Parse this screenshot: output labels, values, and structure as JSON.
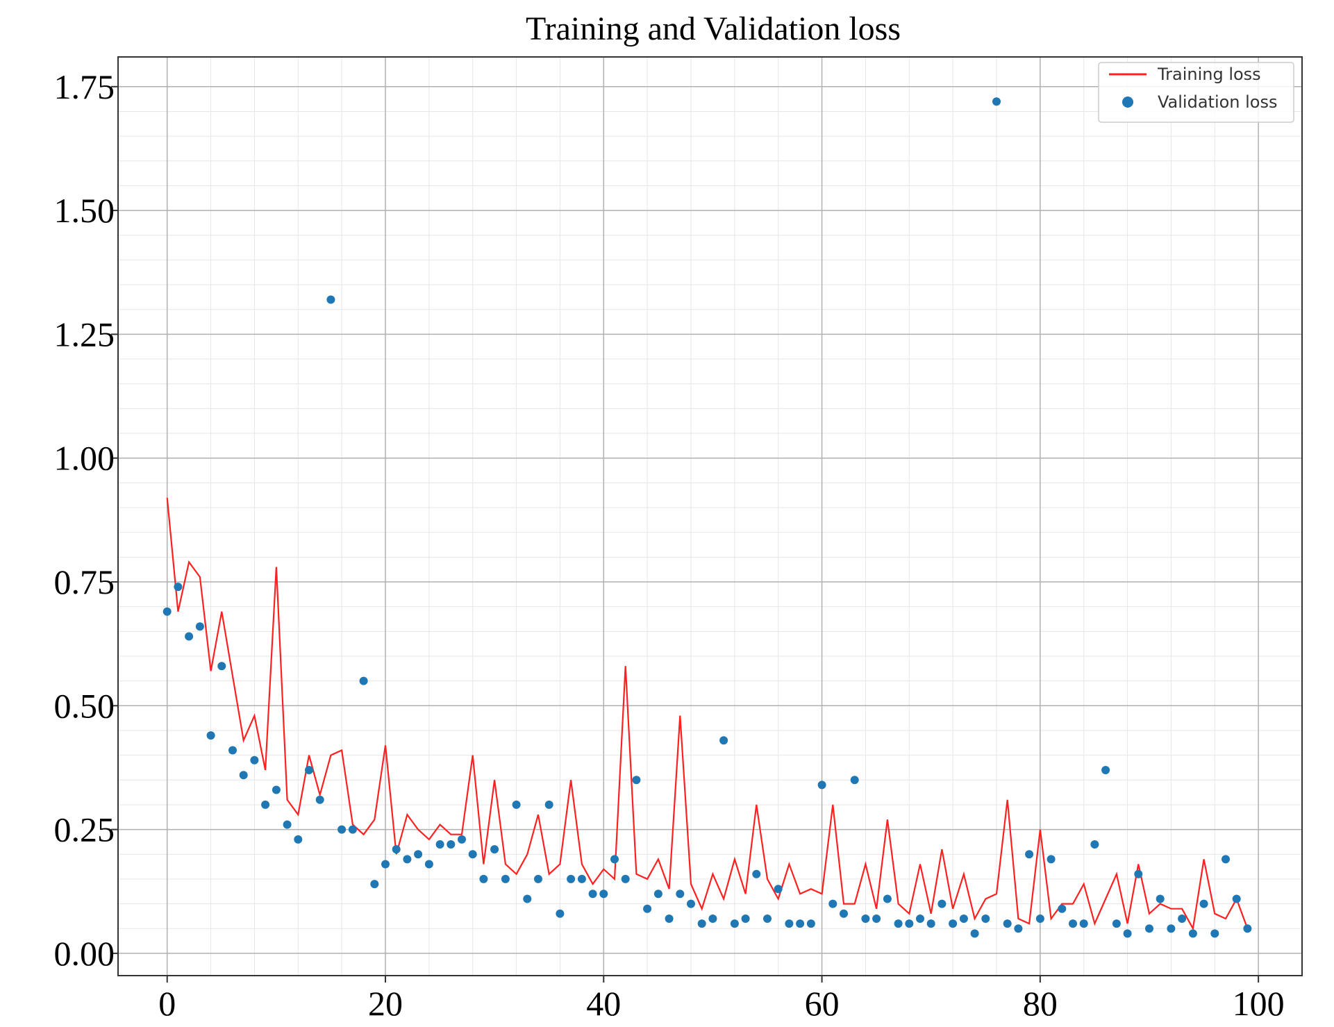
{
  "chart_data": {
    "type": "line",
    "title": "Training and Validation loss",
    "xlabel": "",
    "ylabel": "",
    "xlim": [
      -4.5,
      104
    ],
    "ylim": [
      -0.045,
      1.81
    ],
    "x_ticks": [
      0,
      20,
      40,
      60,
      80,
      100
    ],
    "x_tick_labels": [
      "0",
      "20",
      "40",
      "60",
      "80",
      "100"
    ],
    "y_ticks": [
      0.0,
      0.25,
      0.5,
      0.75,
      1.0,
      1.25,
      1.5,
      1.75
    ],
    "y_tick_labels": [
      "0.00",
      "0.25",
      "0.50",
      "0.75",
      "1.00",
      "1.25",
      "1.50",
      "1.75"
    ],
    "grid": true,
    "minor_grid": true,
    "legend_position": "top-right",
    "colors": {
      "training": "#ff2020",
      "validation": "#1f77b4",
      "grid_major": "#b0b0b0",
      "grid_minor": "#e6e6e6"
    },
    "series": [
      {
        "name": "Training loss",
        "style": "line",
        "values": [
          0.92,
          0.69,
          0.79,
          0.76,
          0.57,
          0.69,
          0.56,
          0.43,
          0.48,
          0.37,
          0.78,
          0.31,
          0.28,
          0.4,
          0.32,
          0.4,
          0.41,
          0.26,
          0.24,
          0.27,
          0.42,
          0.2,
          0.28,
          0.25,
          0.23,
          0.26,
          0.24,
          0.24,
          0.4,
          0.18,
          0.35,
          0.18,
          0.16,
          0.2,
          0.28,
          0.16,
          0.18,
          0.35,
          0.18,
          0.14,
          0.17,
          0.15,
          0.58,
          0.16,
          0.15,
          0.19,
          0.13,
          0.48,
          0.14,
          0.09,
          0.16,
          0.11,
          0.19,
          0.12,
          0.3,
          0.15,
          0.11,
          0.18,
          0.12,
          0.13,
          0.12,
          0.3,
          0.1,
          0.1,
          0.18,
          0.09,
          0.27,
          0.1,
          0.08,
          0.18,
          0.08,
          0.21,
          0.09,
          0.16,
          0.07,
          0.11,
          0.12,
          0.31,
          0.07,
          0.06,
          0.25,
          0.07,
          0.1,
          0.1,
          0.14,
          0.06,
          0.11,
          0.16,
          0.06,
          0.18,
          0.08,
          0.1,
          0.09,
          0.09,
          0.05,
          0.19,
          0.08,
          0.07,
          0.11,
          0.05
        ]
      },
      {
        "name": "Validation loss",
        "style": "scatter",
        "values": [
          0.69,
          0.74,
          0.64,
          0.66,
          0.44,
          0.58,
          0.41,
          0.36,
          0.39,
          0.3,
          0.33,
          0.26,
          0.23,
          0.37,
          0.31,
          1.32,
          0.25,
          0.25,
          0.55,
          0.14,
          0.18,
          0.21,
          0.19,
          0.2,
          0.18,
          0.22,
          0.22,
          0.23,
          0.2,
          0.15,
          0.21,
          0.15,
          0.3,
          0.11,
          0.15,
          0.3,
          0.08,
          0.15,
          0.15,
          0.12,
          0.12,
          0.19,
          0.15,
          0.35,
          0.09,
          0.12,
          0.07,
          0.12,
          0.1,
          0.06,
          0.07,
          0.43,
          0.06,
          0.07,
          0.16,
          0.07,
          0.13,
          0.06,
          0.06,
          0.06,
          0.34,
          0.1,
          0.08,
          0.35,
          0.07,
          0.07,
          0.11,
          0.06,
          0.06,
          0.07,
          0.06,
          0.1,
          0.06,
          0.07,
          0.04,
          0.07,
          1.72,
          0.06,
          0.05,
          0.2,
          0.07,
          0.19,
          0.09,
          0.06,
          0.06,
          0.22,
          0.37,
          0.06,
          0.04,
          0.16,
          0.05,
          0.11,
          0.05,
          0.07,
          0.04,
          0.1,
          0.04,
          0.19,
          0.11,
          0.05
        ]
      }
    ]
  }
}
